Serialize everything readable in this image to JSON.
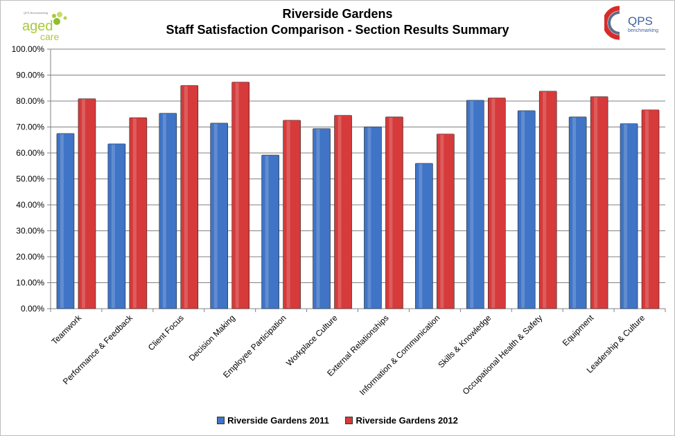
{
  "title": "Riverside Gardens",
  "subtitle": "Staff Satisfaction Comparison - Section Results Summary",
  "logos": {
    "left": {
      "text_main": "aged",
      "text_sub": "care",
      "tagline": "QPS Benchmarking"
    },
    "right": {
      "text_main": "QPS",
      "text_sub": "benchmarking"
    }
  },
  "colors": {
    "series_2011": "#3f74c6",
    "series_2012": "#d63a3a",
    "axis": "#808080",
    "grid": "#000000"
  },
  "chart_data": {
    "type": "bar",
    "title": "Riverside Gardens",
    "subtitle": "Staff Satisfaction Comparison - Section Results Summary",
    "categories": [
      "Teamwork",
      "Performance & Feedback",
      "Client Focus",
      "Decision Making",
      "Employee Participation",
      "Workplace Culture",
      "External Relationships",
      "Information & Communication",
      "Skills & Knowledge",
      "Occupational Health & Safety",
      "Equipment",
      "Leadership & Culture"
    ],
    "series": [
      {
        "name": "Riverside Gardens 2011",
        "values": [
          67.5,
          63.5,
          75.3,
          71.5,
          59.2,
          69.4,
          70.1,
          56.0,
          80.3,
          76.3,
          73.9,
          71.3
        ]
      },
      {
        "name": "Riverside Gardens 2012",
        "values": [
          80.9,
          73.6,
          86.0,
          87.3,
          72.6,
          74.5,
          73.9,
          67.3,
          81.2,
          83.8,
          81.7,
          76.6
        ]
      }
    ],
    "ylim": [
      0,
      100
    ],
    "yticks": [
      "0.00%",
      "10.00%",
      "20.00%",
      "30.00%",
      "40.00%",
      "50.00%",
      "60.00%",
      "70.00%",
      "80.00%",
      "90.00%",
      "100.00%"
    ],
    "xlabel": "",
    "ylabel": "",
    "grid": true,
    "legend_position": "bottom"
  }
}
